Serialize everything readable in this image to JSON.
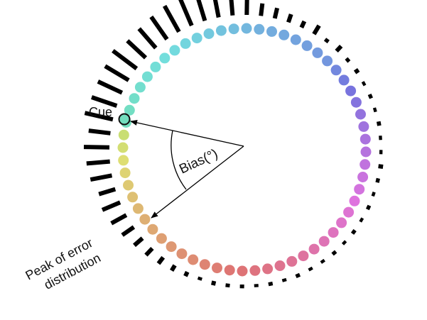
{
  "labels": {
    "cue": "Cue",
    "bias": "Bias(°)",
    "peak_line1": "Peak of error",
    "peak_line2": "distribution"
  },
  "colors": {
    "text": "#111111",
    "bars": "#000000",
    "cue_outline": "#111111"
  },
  "wheel": {
    "dot_count": 60,
    "cue_index": 0,
    "peak_index": 8,
    "start_angle_deg": 193,
    "direction": "clockwise",
    "error_distribution": [
      0.92,
      0.85,
      0.85,
      0.88,
      0.95,
      0.8,
      0.82,
      0.88,
      0.95,
      0.92,
      0.85,
      0.72,
      0.62,
      0.55,
      0.4,
      0.34,
      0.27,
      0.22,
      0.32,
      0.12,
      0.22,
      0.12,
      0.14,
      0.1,
      0.12,
      0.1,
      0.13,
      0.1,
      0.1,
      0.15,
      0.12,
      0.1,
      0.12,
      0.1,
      0.12,
      0.1,
      0.12,
      0.1,
      0.1,
      0.12,
      0.1,
      0.12,
      0.1,
      0.12,
      0.12,
      0.14,
      0.1,
      0.15,
      0.2,
      0.25,
      0.3,
      0.35,
      0.45,
      0.55,
      0.62,
      0.55,
      0.7,
      0.75,
      0.82,
      0.7
    ]
  }
}
